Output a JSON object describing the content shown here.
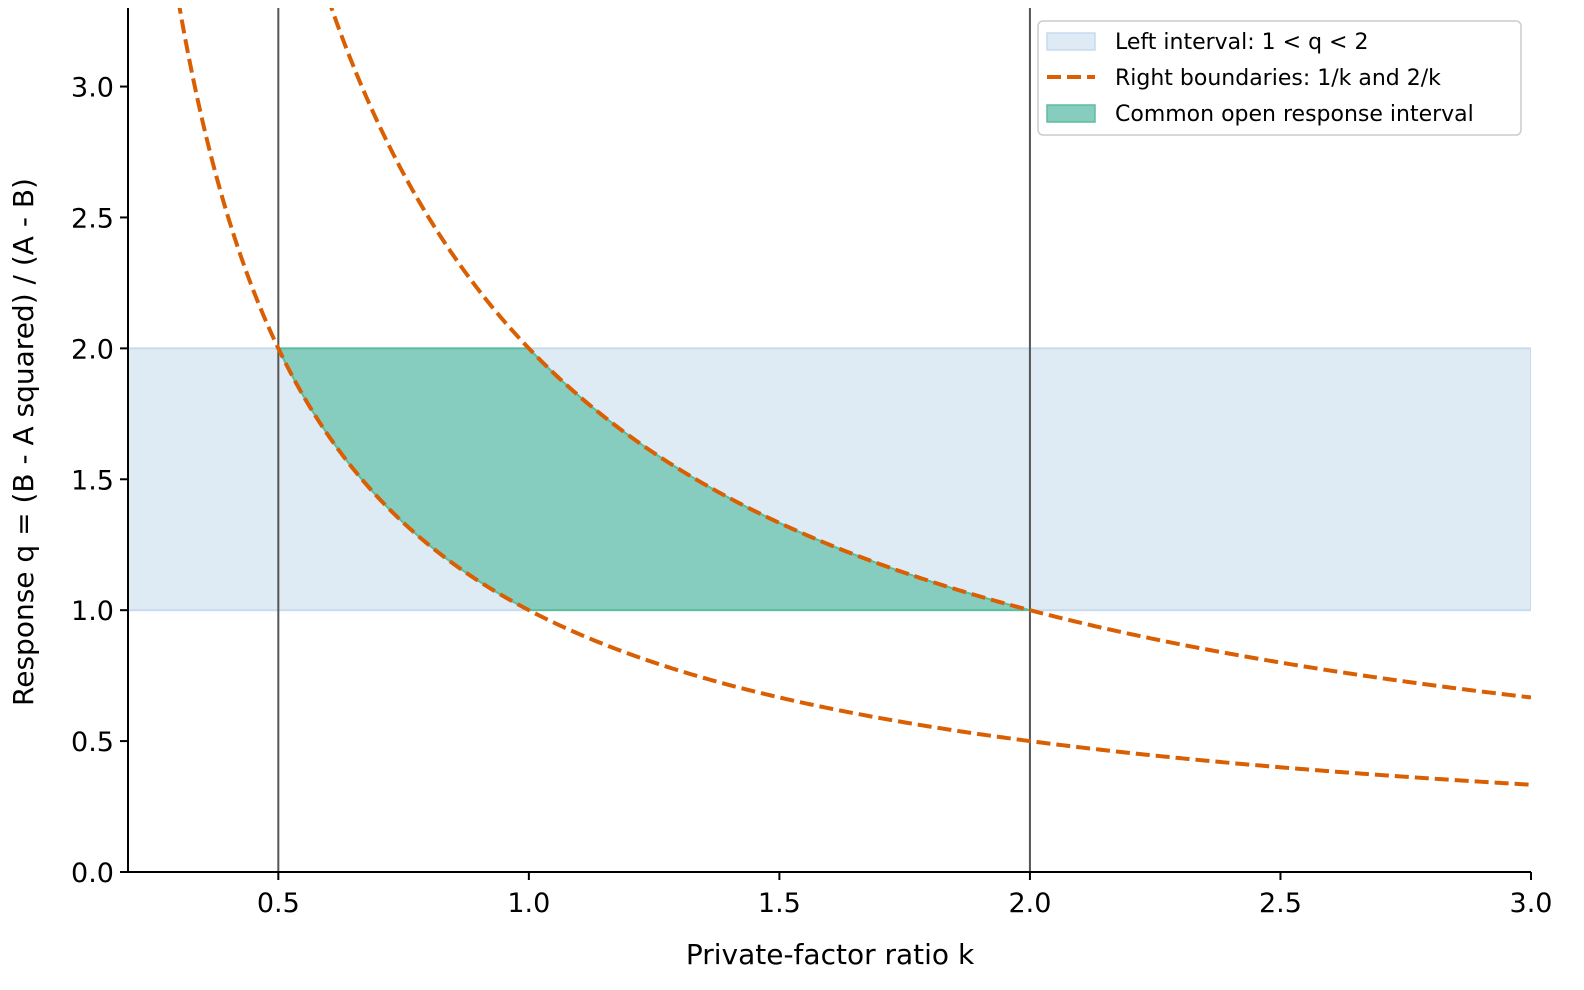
{
  "chart_data": {
    "type": "line",
    "xlabel": "Private-factor ratio k",
    "ylabel": "Response q = (B - A squared) / (A - B)",
    "xlim": [
      0.2,
      3.0
    ],
    "ylim": [
      0.0,
      3.3
    ],
    "xticks": [
      "0.5",
      "1.0",
      "1.5",
      "2.0",
      "2.5",
      "3.0"
    ],
    "yticks": [
      "0.0",
      "0.5",
      "1.0",
      "1.5",
      "2.0",
      "2.5",
      "3.0"
    ],
    "grid": false,
    "legend_position": "top-right",
    "vertical_lines": [
      0.5,
      2.0
    ],
    "band": {
      "name": "Left interval: 1 < q < 2",
      "y_min": 1.0,
      "y_max": 2.0,
      "x_range": [
        0.2,
        3.0
      ]
    },
    "series": [
      {
        "name": "Right boundaries: 1/k and 2/k",
        "curves": [
          {
            "formula": "1/k",
            "x_range": [
              0.2,
              3.0
            ],
            "x": [
              0.3,
              0.4,
              0.5,
              0.6,
              0.75,
              1.0,
              1.25,
              1.5,
              2.0,
              2.5,
              3.0
            ],
            "y": [
              3.33,
              2.5,
              2.0,
              1.67,
              1.33,
              1.0,
              0.8,
              0.67,
              0.5,
              0.4,
              0.33
            ]
          },
          {
            "formula": "2/k",
            "x_range": [
              0.2,
              3.0
            ],
            "x": [
              0.6,
              0.75,
              1.0,
              1.25,
              1.5,
              2.0,
              2.5,
              3.0
            ],
            "y": [
              3.33,
              2.67,
              2.0,
              1.6,
              1.33,
              1.0,
              0.8,
              0.67
            ]
          }
        ]
      }
    ],
    "region": {
      "name": "Common open response interval",
      "x_range": [
        0.5,
        2.0
      ],
      "lower": "max(1, 1/k)",
      "upper": "min(2, 2/k)"
    }
  },
  "colors": {
    "band": "#deebf5",
    "band_edge": "#c6dbee",
    "curve": "#d95f02",
    "region": "#86cdc0",
    "region_edge": "#5cbd9e",
    "vline": "#555555",
    "axis": "#000000"
  }
}
